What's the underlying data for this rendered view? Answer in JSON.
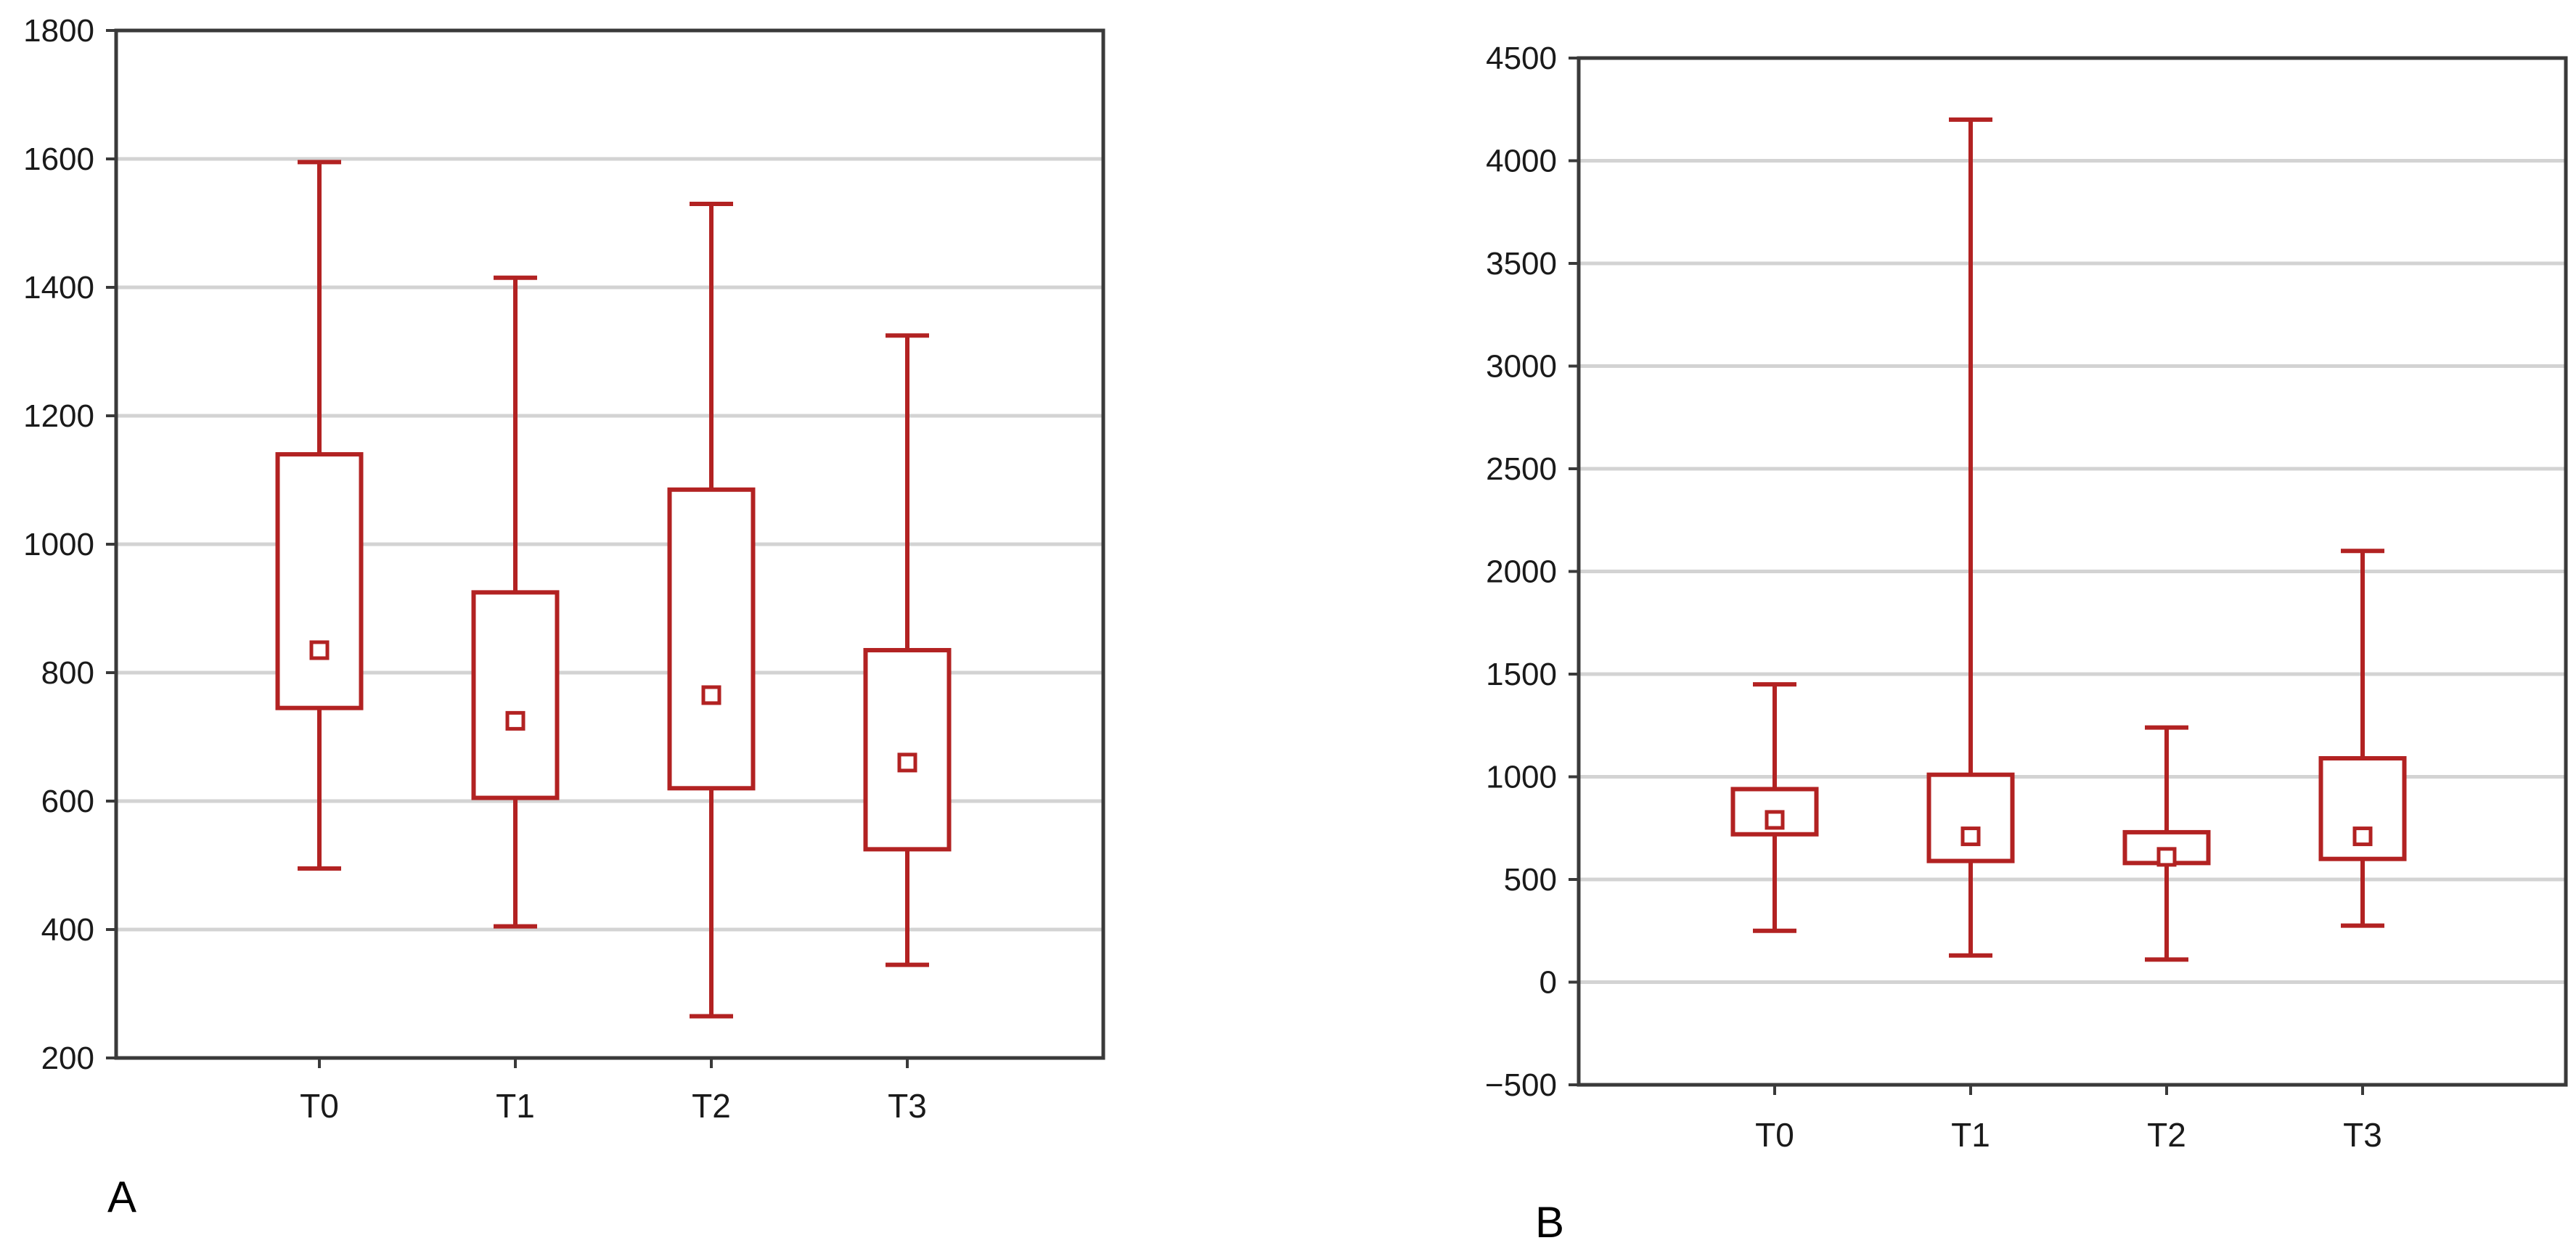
{
  "colors": {
    "series": "#b22222",
    "grid": "#d3d3d3",
    "frame": "#3a3a3a",
    "background": "#ffffff"
  },
  "chart_data": [
    {
      "type": "box",
      "panel_label": "A",
      "categories": [
        "T0",
        "T1",
        "T2",
        "T3"
      ],
      "ylim": [
        200,
        1800
      ],
      "yticks": [
        200,
        400,
        600,
        800,
        1000,
        1200,
        1400,
        1600,
        1800
      ],
      "grid": true,
      "boxes": [
        {
          "category": "T0",
          "whisker_low": 495,
          "q1": 745,
          "center": 835,
          "q3": 1140,
          "whisker_high": 1595
        },
        {
          "category": "T1",
          "whisker_low": 405,
          "q1": 605,
          "center": 725,
          "q3": 925,
          "whisker_high": 1415
        },
        {
          "category": "T2",
          "whisker_low": 265,
          "q1": 620,
          "center": 765,
          "q3": 1085,
          "whisker_high": 1530
        },
        {
          "category": "T3",
          "whisker_low": 345,
          "q1": 525,
          "center": 660,
          "q3": 835,
          "whisker_high": 1325
        }
      ]
    },
    {
      "type": "box",
      "panel_label": "B",
      "categories": [
        "T0",
        "T1",
        "T2",
        "T3"
      ],
      "ylim": [
        -500,
        4500
      ],
      "yticks": [
        -500,
        0,
        500,
        1000,
        1500,
        2000,
        2500,
        3000,
        3500,
        4000,
        4500
      ],
      "grid": true,
      "boxes": [
        {
          "category": "T0",
          "whisker_low": 250,
          "q1": 720,
          "center": 790,
          "q3": 940,
          "whisker_high": 1450
        },
        {
          "category": "T1",
          "whisker_low": 130,
          "q1": 590,
          "center": 710,
          "q3": 1010,
          "whisker_high": 4200
        },
        {
          "category": "T2",
          "whisker_low": 110,
          "q1": 580,
          "center": 610,
          "q3": 730,
          "whisker_high": 1240
        },
        {
          "category": "T3",
          "whisker_low": 275,
          "q1": 600,
          "center": 710,
          "q3": 1090,
          "whisker_high": 2100
        }
      ]
    }
  ]
}
